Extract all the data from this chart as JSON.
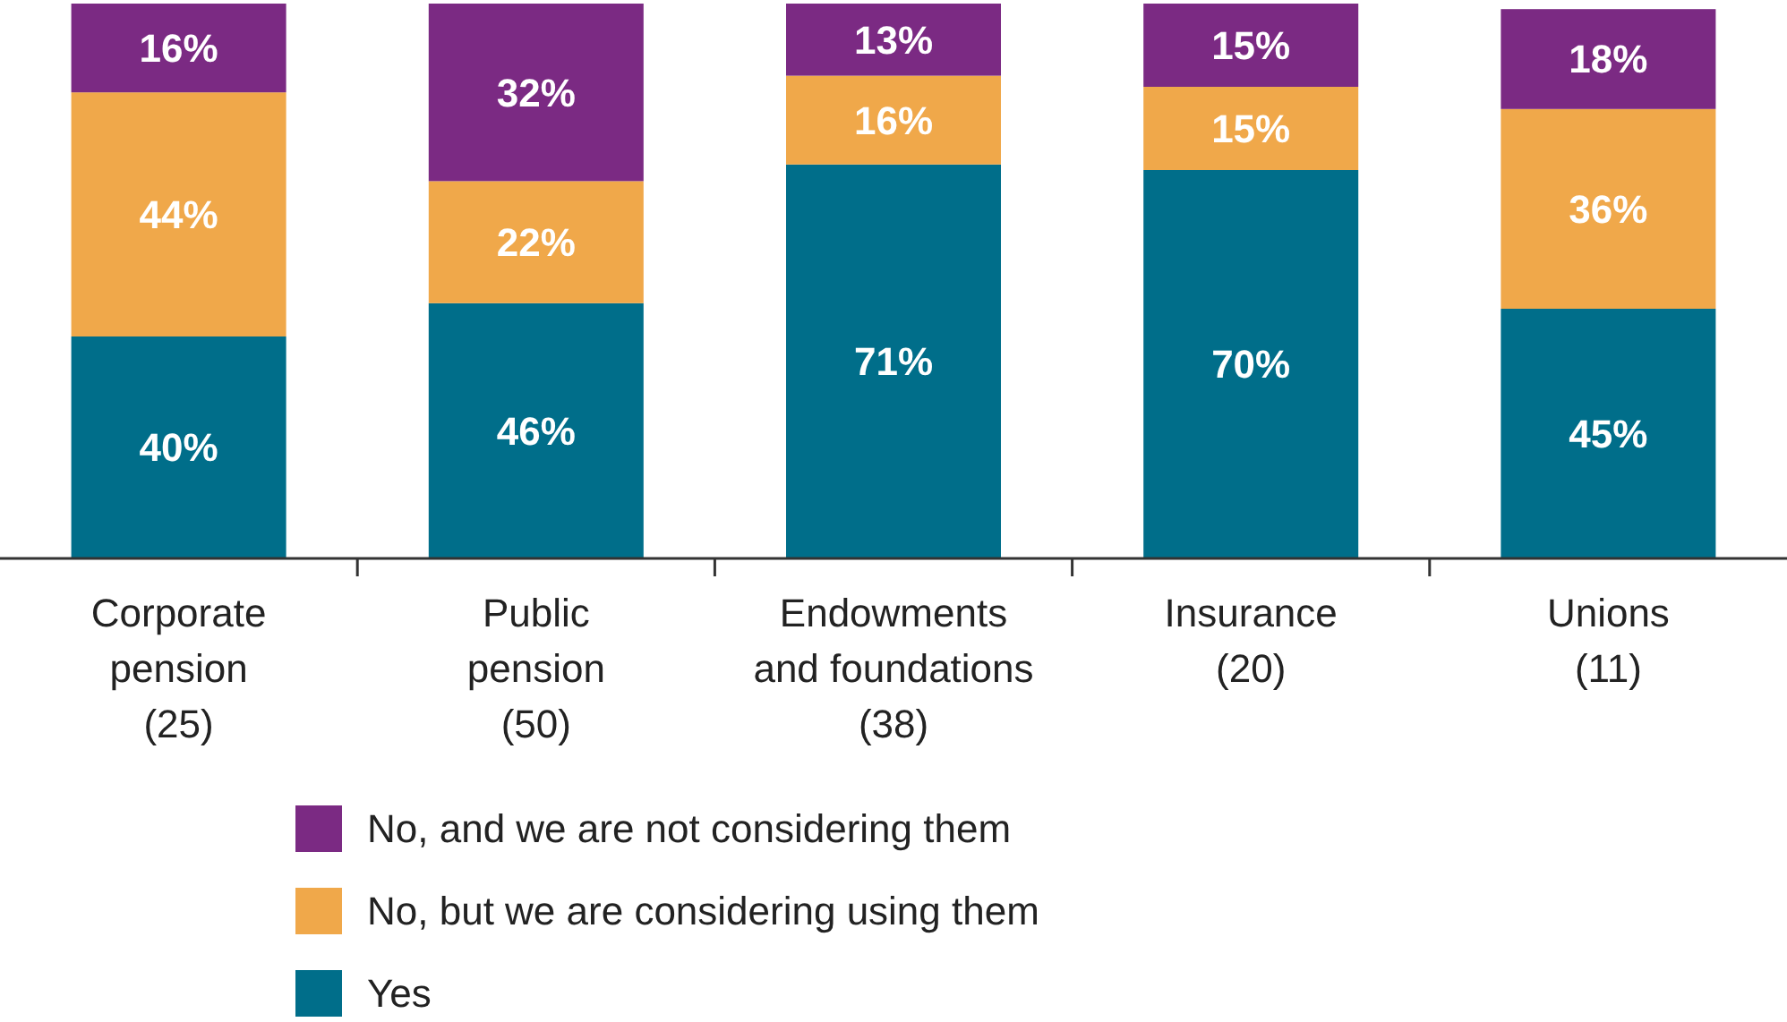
{
  "chart_data": {
    "type": "bar",
    "stacked": true,
    "legend": "bottom",
    "categories": [
      "Corporate\npension\n(25)",
      "Public\npension\n(50)",
      "Endowments\nand foundations\n(38)",
      "Insurance\n(20)",
      "Unions\n(11)"
    ],
    "series": [
      {
        "name": "Yes",
        "color": "#006e8a",
        "values": [
          40,
          46,
          71,
          70,
          45
        ],
        "value_labels": [
          "40%",
          "46%",
          "71%",
          "70%",
          "45%"
        ]
      },
      {
        "name": "No, but we are considering using them",
        "color": "#f0a84a",
        "values": [
          44,
          22,
          16,
          15,
          36
        ],
        "value_labels": [
          "44%",
          "22%",
          "16%",
          "15%",
          "36%"
        ]
      },
      {
        "name": "No, and we are not considering them",
        "color": "#7b2a83",
        "values": [
          16,
          32,
          13,
          15,
          18
        ],
        "value_labels": [
          "16%",
          "32%",
          "13%",
          "15%",
          "18%"
        ]
      }
    ]
  }
}
